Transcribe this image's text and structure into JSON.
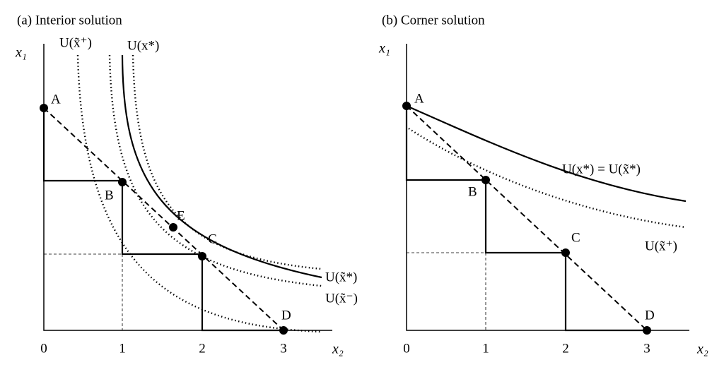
{
  "panels": [
    {
      "title": "(a) Interior solution",
      "y_axis_label": "x₁",
      "x_axis_label": "x₂",
      "ticks": [
        0,
        1,
        2,
        3
      ],
      "points": [
        "A",
        "B",
        "C",
        "D",
        "E"
      ],
      "curve_labels": [
        "U(x̃⁺)",
        "U(x*)",
        "U(x̃*)",
        "U(x̃⁻)"
      ]
    },
    {
      "title": "(b) Corner solution",
      "y_axis_label": "x₁",
      "x_axis_label": "x₂",
      "ticks": [
        0,
        1,
        2,
        3
      ],
      "points": [
        "A",
        "B",
        "C",
        "D"
      ],
      "curve_labels": [
        "U(x*) = U(x̃*)",
        "U(x̃⁺)"
      ]
    }
  ]
}
